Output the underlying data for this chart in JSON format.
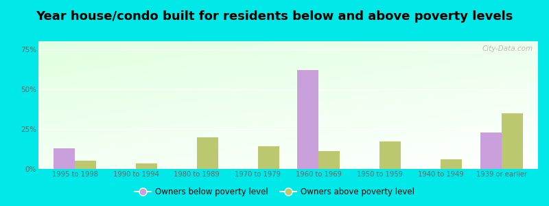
{
  "title": "Year house/condo built for residents below and above poverty levels",
  "categories": [
    "1995 to 1998",
    "1990 to 1994",
    "1980 to 1989",
    "1970 to 1979",
    "1960 to 1969",
    "1950 to 1959",
    "1940 to 1949",
    "1939 or earlier"
  ],
  "below_poverty": [
    13.0,
    0.0,
    0.0,
    0.0,
    62.0,
    0.0,
    0.0,
    23.0
  ],
  "above_poverty": [
    5.0,
    3.5,
    20.0,
    14.0,
    11.0,
    17.0,
    6.0,
    35.0
  ],
  "below_color": "#c9a0dc",
  "above_color": "#bcc870",
  "ylim": [
    0,
    80
  ],
  "yticks": [
    0,
    25,
    50,
    75
  ],
  "ytick_labels": [
    "0%",
    "25%",
    "50%",
    "75%"
  ],
  "legend_below": "Owners below poverty level",
  "legend_above": "Owners above poverty level",
  "outer_bg": "#00e8e8",
  "bar_width": 0.35,
  "title_fontsize": 13,
  "watermark": "City-Data.com"
}
